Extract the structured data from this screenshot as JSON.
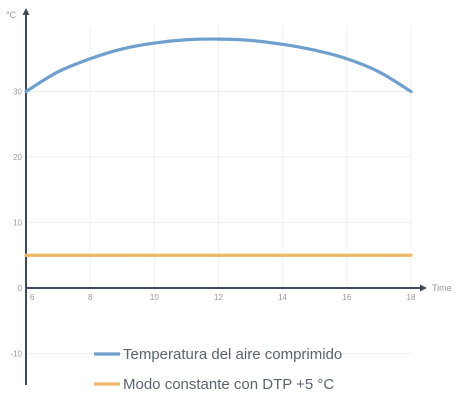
{
  "chart_data": {
    "type": "line",
    "title": "",
    "ylabel": "°C",
    "xlabel": "Time",
    "xlim": [
      6,
      18
    ],
    "ylim": [
      -10,
      40
    ],
    "x_ticks": [
      6,
      8,
      10,
      12,
      14,
      16,
      18
    ],
    "y_ticks": [
      -10,
      0,
      10,
      20,
      30
    ],
    "grid": true,
    "legend_position": "bottom",
    "series": [
      {
        "name": "Temperatura del aire comprimido",
        "color": "#6f9fcc",
        "x": [
          6,
          7,
          8,
          9,
          10,
          11,
          12,
          13,
          14,
          15,
          16,
          17,
          18
        ],
        "y": [
          30,
          33,
          35,
          36.5,
          37.4,
          37.9,
          38,
          37.8,
          37.2,
          36.3,
          35,
          33,
          30
        ]
      },
      {
        "name": "Modo constante con DTP +5 °C",
        "color": "#f0b866",
        "x": [
          6,
          18
        ],
        "y": [
          5,
          5
        ]
      }
    ]
  }
}
